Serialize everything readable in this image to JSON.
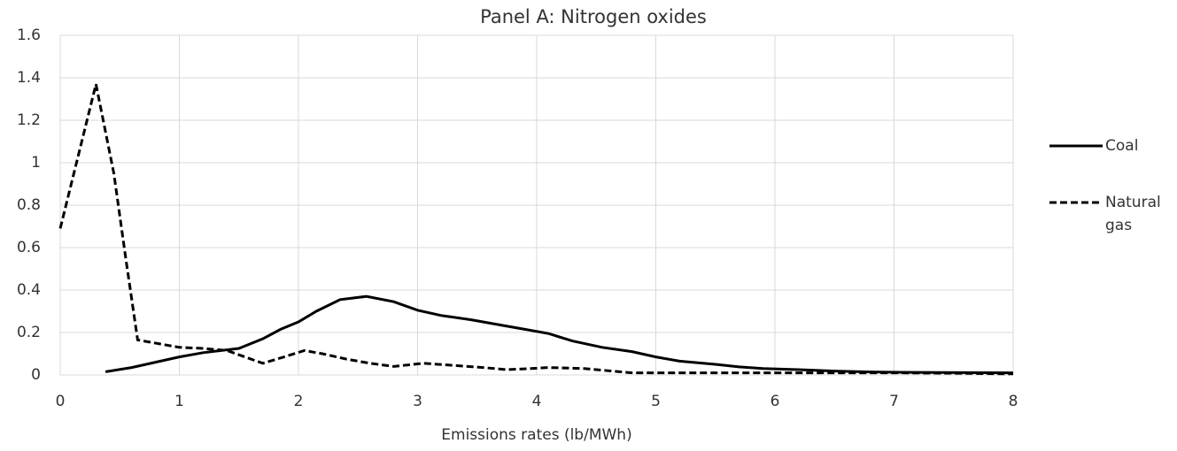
{
  "chart_data": {
    "type": "line",
    "title": "Panel A: Nitrogen oxides",
    "xlabel": "Emissions rates (lb/MWh)",
    "xlim": [
      0,
      8
    ],
    "xticks": [
      0,
      1,
      2,
      3,
      4,
      5,
      6,
      7,
      8
    ],
    "ylim": [
      0,
      1.6
    ],
    "yticks": [
      0,
      0.2,
      0.4,
      0.6,
      0.8,
      1,
      1.2,
      1.4,
      1.6
    ],
    "grid": true,
    "legend": "right",
    "series": [
      {
        "name": "Coal",
        "color": "#000000",
        "dash": "solid",
        "x": [
          0.38,
          0.6,
          0.8,
          1.0,
          1.2,
          1.35,
          1.5,
          1.7,
          1.85,
          2.0,
          2.15,
          2.35,
          2.57,
          2.8,
          3.0,
          3.2,
          3.45,
          3.7,
          3.9,
          4.1,
          4.3,
          4.55,
          4.8,
          5.0,
          5.2,
          5.5,
          5.7,
          5.9,
          6.2,
          6.5,
          6.8,
          7.2,
          7.6,
          8.0
        ],
        "values": [
          0.015,
          0.035,
          0.06,
          0.085,
          0.105,
          0.115,
          0.125,
          0.17,
          0.215,
          0.25,
          0.3,
          0.355,
          0.37,
          0.345,
          0.305,
          0.28,
          0.26,
          0.235,
          0.215,
          0.195,
          0.16,
          0.13,
          0.11,
          0.085,
          0.065,
          0.05,
          0.038,
          0.03,
          0.025,
          0.018,
          0.014,
          0.012,
          0.011,
          0.01
        ]
      },
      {
        "name": "Natural gas",
        "color": "#000000",
        "dash": "dashed",
        "x": [
          0,
          0.3,
          0.45,
          0.55,
          0.65,
          0.85,
          1.0,
          1.2,
          1.4,
          1.55,
          1.7,
          1.85,
          2.05,
          2.2,
          2.4,
          2.6,
          2.8,
          3.05,
          3.3,
          3.55,
          3.75,
          3.95,
          4.1,
          4.4,
          4.6,
          4.8,
          5.1,
          5.5,
          6.0,
          6.5,
          7.0,
          7.5,
          8.0
        ],
        "values": [
          0.69,
          1.37,
          0.95,
          0.55,
          0.165,
          0.145,
          0.13,
          0.125,
          0.115,
          0.085,
          0.055,
          0.08,
          0.115,
          0.1,
          0.075,
          0.055,
          0.04,
          0.055,
          0.045,
          0.035,
          0.025,
          0.03,
          0.035,
          0.03,
          0.02,
          0.01,
          0.01,
          0.01,
          0.01,
          0.01,
          0.01,
          0.008,
          0.005
        ]
      }
    ]
  }
}
